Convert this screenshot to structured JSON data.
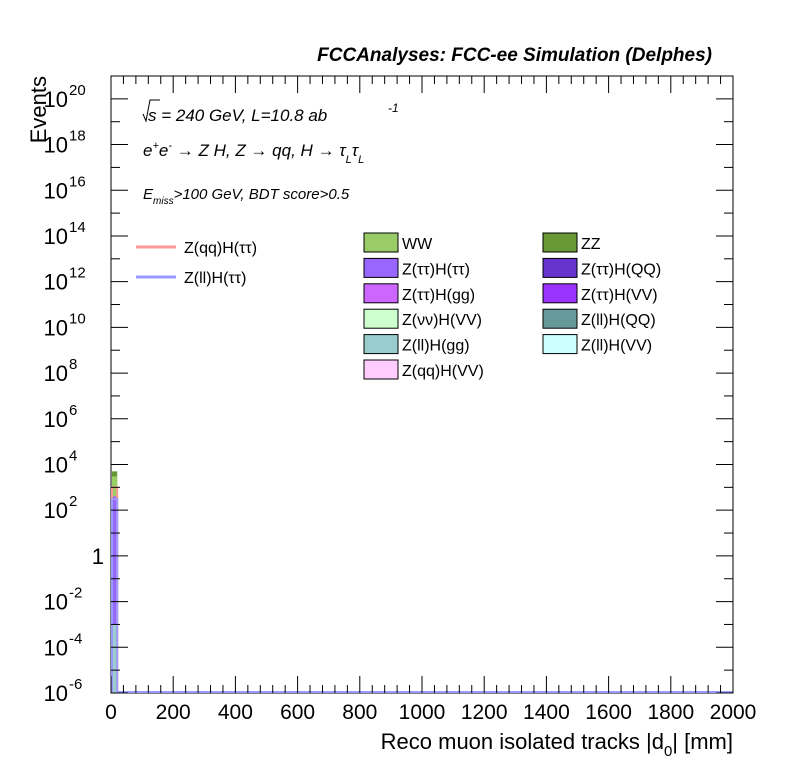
{
  "header": "FCCAnalyses: FCC-ee Simulation (Delphes)",
  "annotations": {
    "line1_sqrt": "√s = 240 GeV, L=10.8 ab",
    "line1_exp": "-1",
    "line2": "e⁺e⁻ → Z H, Z → qq, H → τ_L τ_L",
    "line3": "E_miss>100 GeV, BDT score>0.5"
  },
  "chart_data": {
    "type": "histogram",
    "xlabel": "Reco muon isolated tracks |d_0| [mm]",
    "ylabel": "Events",
    "xlim": [
      0,
      2000
    ],
    "ylim": [
      1e-06,
      1e+21
    ],
    "ylog": true,
    "x_ticks": [
      "0",
      "200",
      "400",
      "600",
      "800",
      "1000",
      "1200",
      "1400",
      "1600",
      "1800",
      "2000"
    ],
    "y_ticks": [
      {
        "base": "10",
        "exp": "-6"
      },
      {
        "base": "10",
        "exp": "-4"
      },
      {
        "base": "10",
        "exp": "-2"
      },
      {
        "base": "1",
        "exp": ""
      },
      {
        "base": "10",
        "exp": "2"
      },
      {
        "base": "10",
        "exp": "4"
      },
      {
        "base": "10",
        "exp": "6"
      },
      {
        "base": "10",
        "exp": "8"
      },
      {
        "base": "10",
        "exp": "10"
      },
      {
        "base": "10",
        "exp": "12"
      },
      {
        "base": "10",
        "exp": "14"
      },
      {
        "base": "10",
        "exp": "16"
      },
      {
        "base": "10",
        "exp": "18"
      },
      {
        "base": "10",
        "exp": "20"
      }
    ],
    "bin": [
      0,
      20
    ],
    "stack": [
      {
        "name": "Z(ll)H(ττ)",
        "value": 0.001,
        "color": "#9ccdcd"
      },
      {
        "name": "Z(ττ)H(ττ)",
        "value": 400,
        "color": "#9966ff"
      },
      {
        "name": "WW",
        "value": 3000,
        "color": "#99d066"
      },
      {
        "name": "ZZ",
        "value": 5000,
        "color": "#669933"
      }
    ],
    "signal_lines": [
      {
        "name": "Z(qq)H(ττ)",
        "value": 1000,
        "color": "#ff9999"
      },
      {
        "name": "Z(ll)H(ττ)",
        "value": 300,
        "color": "#9999ff"
      }
    ],
    "legend_signal": [
      {
        "label": "Z(qq)H(ττ)",
        "color": "#ff9999"
      },
      {
        "label": "Z(ll)H(ττ)",
        "color": "#9999ff"
      }
    ],
    "legend_background": [
      {
        "label": "WW",
        "color": "#99cc66"
      },
      {
        "label": "ZZ",
        "color": "#669933"
      },
      {
        "label": "Z(ττ)H(ττ)",
        "color": "#9966ff"
      },
      {
        "label": "Z(ττ)H(QQ)",
        "color": "#6633cc"
      },
      {
        "label": "Z(ττ)H(gg)",
        "color": "#cc66ff"
      },
      {
        "label": "Z(ττ)H(VV)",
        "color": "#9933ff"
      },
      {
        "label": "Z(νν)H(VV)",
        "color": "#ccffcc"
      },
      {
        "label": "Z(ll)H(QQ)",
        "color": "#669999"
      },
      {
        "label": "Z(ll)H(gg)",
        "color": "#99cccc"
      },
      {
        "label": "Z(ll)H(VV)",
        "color": "#ccffff"
      },
      {
        "label": "Z(qq)H(VV)",
        "color": "#ffccff"
      }
    ]
  }
}
